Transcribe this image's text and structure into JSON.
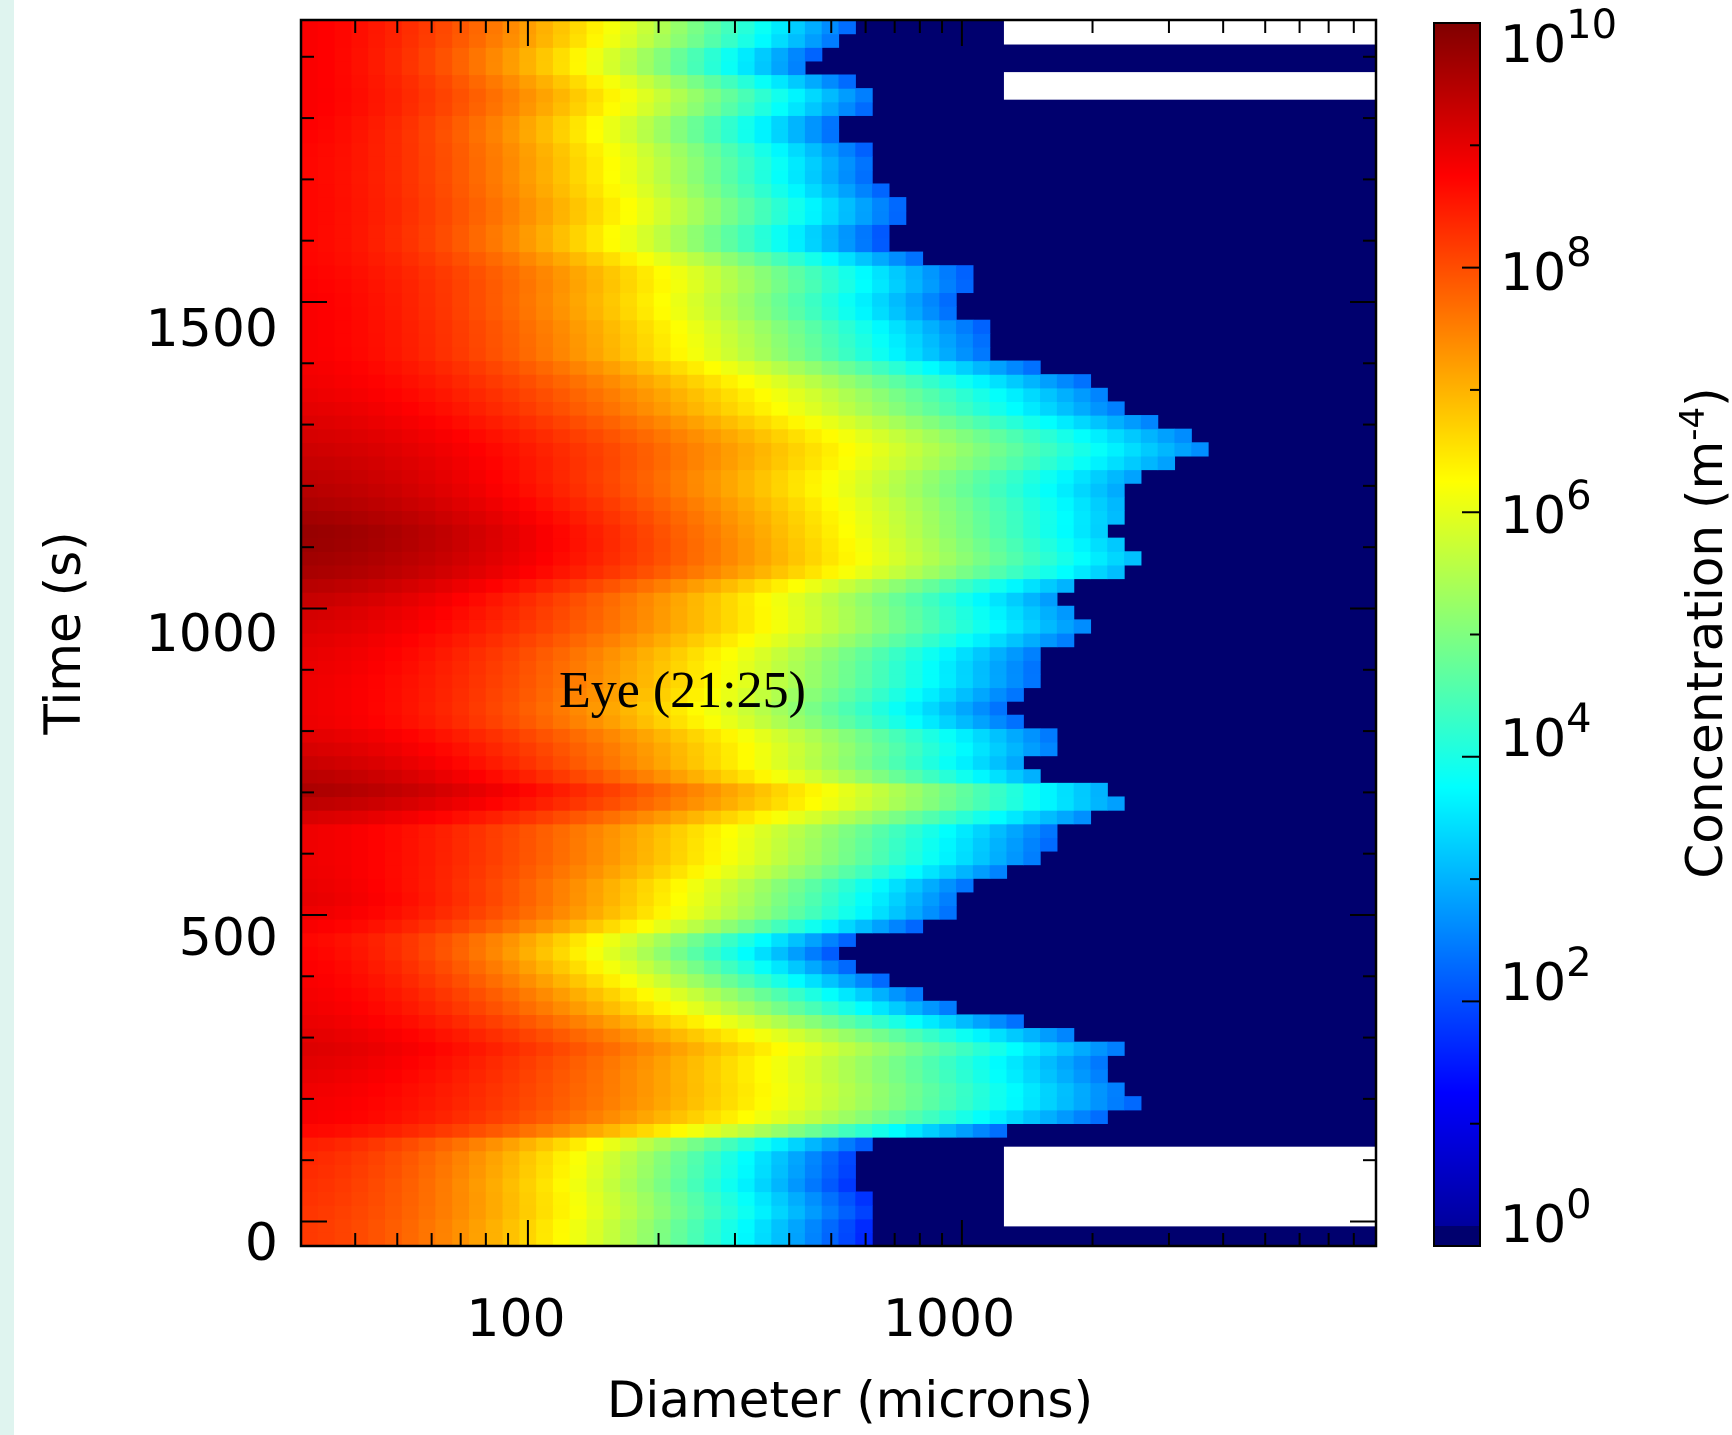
{
  "chart_data": {
    "type": "heatmap",
    "title": "",
    "xlabel": "Diameter (microns)",
    "ylabel": "Time (s)",
    "x_scale": "log",
    "x_range": [
      30,
      9000
    ],
    "y_range": [
      -40,
      1960
    ],
    "x_ticks": [
      {
        "value": 100,
        "label": "100"
      },
      {
        "value": 1000,
        "label": "1000"
      }
    ],
    "y_ticks": [
      {
        "value": 0,
        "label": "0"
      },
      {
        "value": 500,
        "label": "500"
      },
      {
        "value": 1000,
        "label": "1000"
      },
      {
        "value": 1500,
        "label": "1500"
      }
    ],
    "colorbar": {
      "label": "Concentration (m",
      "label_superscript": "-4",
      "label_close": ")",
      "scale": "log",
      "range_exponent": [
        0,
        10
      ],
      "ticks": [
        {
          "base": "10",
          "exp": "0"
        },
        {
          "base": "10",
          "exp": "2"
        },
        {
          "base": "10",
          "exp": "4"
        },
        {
          "base": "10",
          "exp": "6"
        },
        {
          "base": "10",
          "exp": "8"
        },
        {
          "base": "10",
          "exp": "10"
        }
      ]
    },
    "annotation": {
      "text": "Eye (21:25)",
      "x": 160,
      "y": 910
    },
    "missing_bands": [
      [
        -8,
        122
      ],
      [
        1830,
        1875
      ],
      [
        1920,
        1960
      ]
    ],
    "profile": [
      {
        "t": -40,
        "max_d": 720,
        "peak_log": 8.2
      },
      {
        "t": 0,
        "max_d": 640,
        "peak_log": 8.2
      },
      {
        "t": 60,
        "max_d": 560,
        "peak_log": 8.3
      },
      {
        "t": 120,
        "max_d": 520,
        "peak_log": 8.4
      },
      {
        "t": 160,
        "max_d": 2400,
        "peak_log": 8.8
      },
      {
        "t": 220,
        "max_d": 2100,
        "peak_log": 8.9
      },
      {
        "t": 280,
        "max_d": 2500,
        "peak_log": 9.1
      },
      {
        "t": 340,
        "max_d": 1100,
        "peak_log": 8.9
      },
      {
        "t": 400,
        "max_d": 560,
        "peak_log": 8.8
      },
      {
        "t": 460,
        "max_d": 620,
        "peak_log": 8.7
      },
      {
        "t": 520,
        "max_d": 900,
        "peak_log": 9.0
      },
      {
        "t": 580,
        "max_d": 1500,
        "peak_log": 8.9
      },
      {
        "t": 640,
        "max_d": 1700,
        "peak_log": 8.9
      },
      {
        "t": 700,
        "max_d": 2200,
        "peak_log": 9.6
      },
      {
        "t": 760,
        "max_d": 1500,
        "peak_log": 9.2
      },
      {
        "t": 820,
        "max_d": 1300,
        "peak_log": 8.9
      },
      {
        "t": 880,
        "max_d": 1500,
        "peak_log": 8.9
      },
      {
        "t": 940,
        "max_d": 1600,
        "peak_log": 9.0
      },
      {
        "t": 1000,
        "max_d": 1900,
        "peak_log": 9.2
      },
      {
        "t": 1060,
        "max_d": 2200,
        "peak_log": 9.6
      },
      {
        "t": 1120,
        "max_d": 2300,
        "peak_log": 9.8
      },
      {
        "t": 1180,
        "max_d": 2400,
        "peak_log": 9.5
      },
      {
        "t": 1240,
        "max_d": 2900,
        "peak_log": 9.3
      },
      {
        "t": 1300,
        "max_d": 3500,
        "peak_log": 9.1
      },
      {
        "t": 1360,
        "max_d": 1900,
        "peak_log": 8.9
      },
      {
        "t": 1420,
        "max_d": 1200,
        "peak_log": 8.8
      },
      {
        "t": 1500,
        "max_d": 1050,
        "peak_log": 8.8
      },
      {
        "t": 1580,
        "max_d": 800,
        "peak_log": 8.7
      },
      {
        "t": 1660,
        "max_d": 680,
        "peak_log": 8.7
      },
      {
        "t": 1740,
        "max_d": 620,
        "peak_log": 8.7
      },
      {
        "t": 1820,
        "max_d": 560,
        "peak_log": 8.8
      },
      {
        "t": 1900,
        "max_d": 520,
        "peak_log": 8.8
      },
      {
        "t": 1960,
        "max_d": 520,
        "peak_log": 8.8
      }
    ]
  }
}
